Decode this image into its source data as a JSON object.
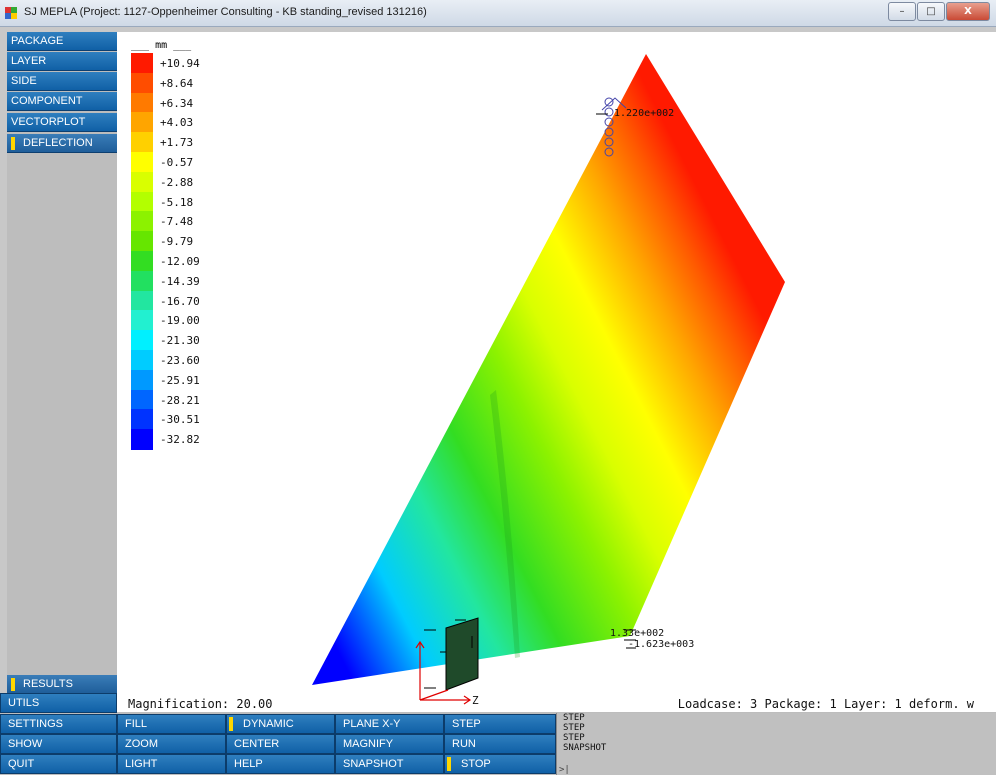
{
  "window": {
    "title": "SJ MEPLA (Project: 1127-Oppenheimer Consulting - KB standing_revised 131216)",
    "controls": {
      "minimize": "–",
      "maximize": "□",
      "close": "X"
    }
  },
  "side_menu": {
    "items": [
      {
        "label": "PACKAGE"
      },
      {
        "label": "LAYER"
      },
      {
        "label": "SIDE"
      },
      {
        "label": "COMPONENT"
      },
      {
        "label": "VECTORPLOT"
      },
      {
        "label": "DEFLECTION",
        "active": true
      }
    ],
    "results": "RESULTS"
  },
  "legend": {
    "unit_label": "___ mm ___",
    "entries": [
      {
        "label": "+10.94",
        "color": "#ff1a00"
      },
      {
        "label": "+8.64",
        "color": "#ff4d00"
      },
      {
        "label": "+6.34",
        "color": "#ff7a00"
      },
      {
        "label": "+4.03",
        "color": "#ffa500"
      },
      {
        "label": "+1.73",
        "color": "#ffd000"
      },
      {
        "label": "-0.57",
        "color": "#ffff00"
      },
      {
        "label": "-2.88",
        "color": "#d9ff00"
      },
      {
        "label": "-5.18",
        "color": "#b3ff00"
      },
      {
        "label": "-7.48",
        "color": "#8cf200"
      },
      {
        "label": "-9.79",
        "color": "#66e600"
      },
      {
        "label": "-12.09",
        "color": "#33dd22"
      },
      {
        "label": "-14.39",
        "color": "#22e060"
      },
      {
        "label": "-16.70",
        "color": "#22e6a0"
      },
      {
        "label": "-19.00",
        "color": "#22f0d0"
      },
      {
        "label": "-21.30",
        "color": "#00f0ff"
      },
      {
        "label": "-23.60",
        "color": "#00ccff"
      },
      {
        "label": "-25.91",
        "color": "#0099ff"
      },
      {
        "label": "-28.21",
        "color": "#0066ff"
      },
      {
        "label": "-30.51",
        "color": "#0033ff"
      },
      {
        "label": "-32.82",
        "color": "#0000ff"
      }
    ]
  },
  "viewport": {
    "annotations": {
      "top_value": "1.220e+002",
      "bottom_overlap": "1.33e+002",
      "bottom_value": "-1.623e+003"
    },
    "axis_label": "Z",
    "magnification": "Magnification: 20.00",
    "loadcase": "Loadcase:  3 Package: 1 Layer: 1 deform. w"
  },
  "bottom_menu": {
    "left": [
      "UTILS",
      "SETTINGS",
      "SHOW",
      "QUIT"
    ],
    "grid": [
      [
        "FILL",
        "DYNAMIC",
        "PLANE X-Y",
        "STEP"
      ],
      [
        "ZOOM",
        "CENTER",
        "MAGNIFY",
        "RUN"
      ],
      [
        "LIGHT",
        "HELP",
        "SNAPSHOT",
        "STOP"
      ]
    ],
    "flagged": [
      "DYNAMIC",
      "STOP"
    ]
  },
  "console": {
    "lines": [
      "STEP",
      "STEP",
      "STEP",
      "SNAPSHOT"
    ],
    "prompt": ">|"
  }
}
